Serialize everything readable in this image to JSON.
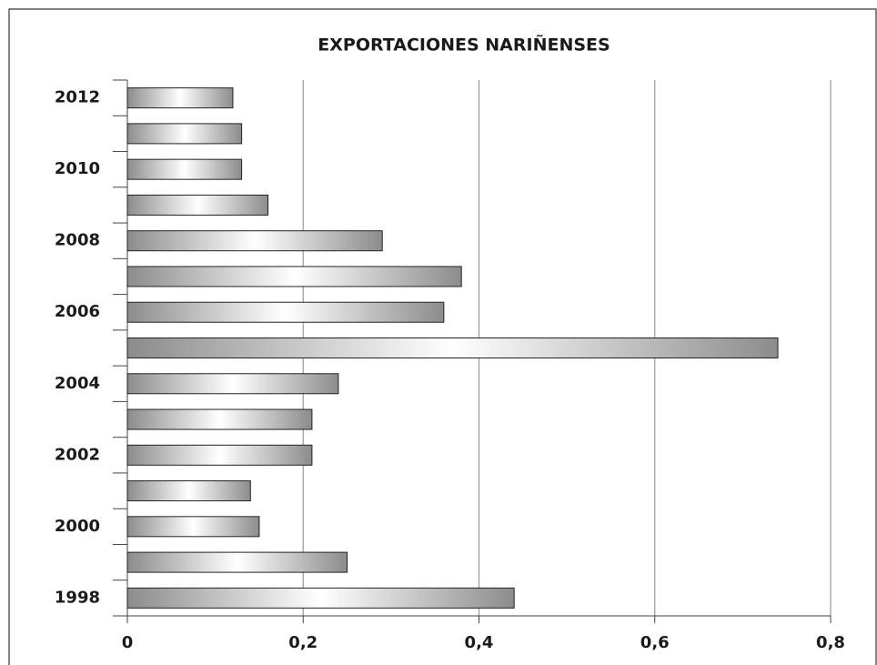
{
  "chart_data": {
    "type": "hbar",
    "title": "EXPORTACIONES NARIÑENSES",
    "categories": [
      "1998",
      null,
      "2000",
      null,
      "2002",
      null,
      "2004",
      null,
      "2006",
      null,
      "2008",
      null,
      "2010",
      null,
      "2012"
    ],
    "values": [
      0.44,
      0.25,
      0.15,
      0.14,
      0.21,
      0.21,
      0.24,
      0.74,
      0.36,
      0.38,
      0.29,
      0.16,
      0.13,
      0.13,
      0.12
    ],
    "color": "#8c8c8c",
    "xlim": [
      0,
      0.8
    ],
    "xticks": [
      0,
      {
        "value": 0.2,
        "label": "0,2"
      },
      {
        "value": 0.4,
        "label": "0,4"
      },
      {
        "value": 0.6,
        "label": "0,6"
      },
      {
        "value": 0.8,
        "label": "0,8"
      }
    ],
    "grid": true
  }
}
